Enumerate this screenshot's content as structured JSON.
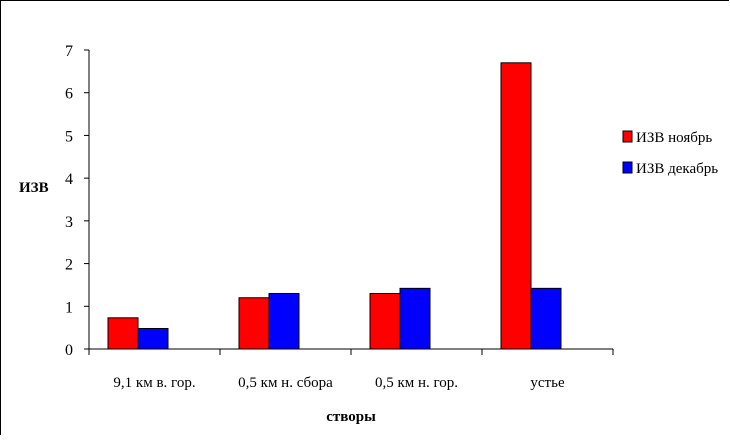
{
  "chart_data": {
    "type": "bar",
    "categories": [
      "9,1 км в. гор.",
      "0,5 км н. сбора",
      "0,5 км н. гор.",
      "устье"
    ],
    "series": [
      {
        "name": "ИЗВ ноябрь",
        "color": "#ff0000",
        "values": [
          0.73,
          1.2,
          1.3,
          6.7
        ]
      },
      {
        "name": "ИЗВ декабрь",
        "color": "#0000ff",
        "values": [
          0.48,
          1.3,
          1.42,
          1.42
        ]
      }
    ],
    "xlabel": "створы",
    "ylabel": "ИЗВ",
    "ylim": [
      0,
      7
    ],
    "yticks": [
      "0",
      "1",
      "2",
      "3",
      "4",
      "5",
      "6",
      "7"
    ],
    "grid": false,
    "legend_position": "right"
  }
}
